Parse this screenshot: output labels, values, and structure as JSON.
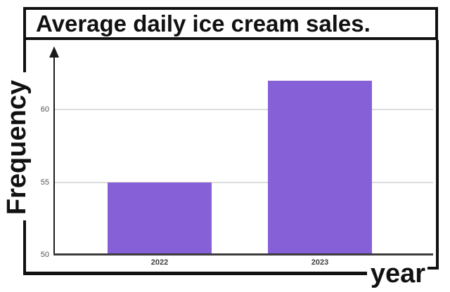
{
  "chart_data": {
    "type": "bar",
    "title": "Average daily ice cream sales.",
    "xlabel": "year",
    "ylabel": "Frequency",
    "categories": [
      "2022",
      "2023"
    ],
    "values": [
      55,
      62
    ],
    "yticks": [
      50,
      55,
      60
    ],
    "ylim": [
      50,
      64
    ],
    "legend_position": "none",
    "grid": true,
    "colors": {
      "bar": "#8560D6",
      "gridline": "#DDDDDD",
      "x_axis_line": "#3C3C3C",
      "y_axis_line": "#1A1A1A",
      "y_tick_label": "#555555",
      "x_tick_label": "#3F3F3F",
      "frame": "#111111",
      "text": "#111111",
      "background": "#FFFFFF"
    }
  }
}
